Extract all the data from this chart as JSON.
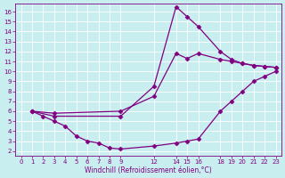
{
  "title": "",
  "xlabel": "Windchill (Refroidissement éolien,°C)",
  "ylabel": "",
  "bg_color": "#c8eef0",
  "grid_color": "#b8dfe2",
  "line_color": "#800080",
  "xlim": [
    -0.5,
    23.5
  ],
  "ylim": [
    1.5,
    16.8
  ],
  "xticks": [
    0,
    1,
    2,
    3,
    4,
    5,
    6,
    7,
    8,
    9,
    12,
    14,
    15,
    16,
    18,
    19,
    20,
    21,
    22,
    23
  ],
  "yticks": [
    2,
    3,
    4,
    5,
    6,
    7,
    8,
    9,
    10,
    11,
    12,
    13,
    14,
    15,
    16
  ],
  "lines": [
    {
      "x": [
        1,
        2,
        3,
        4,
        5,
        6,
        7,
        8,
        9,
        12,
        14,
        15,
        16,
        18,
        19,
        20,
        21,
        22,
        23
      ],
      "y": [
        6,
        5.5,
        5,
        4.5,
        3.5,
        3.0,
        2.8,
        2.3,
        2.2,
        2.5,
        2.8,
        3.0,
        3.2,
        6.0,
        7.0,
        8.0,
        9.0,
        9.5,
        10.0
      ]
    },
    {
      "x": [
        1,
        3,
        9,
        12,
        14,
        15,
        16,
        18,
        19,
        20,
        21,
        22,
        23
      ],
      "y": [
        6,
        5.5,
        5.5,
        8.5,
        16.5,
        15.5,
        14.5,
        12.0,
        11.2,
        10.8,
        10.6,
        10.5,
        10.4
      ]
    },
    {
      "x": [
        1,
        3,
        9,
        12,
        14,
        15,
        16,
        18,
        19,
        20,
        21,
        22,
        23
      ],
      "y": [
        6.0,
        5.8,
        6.0,
        7.5,
        11.8,
        11.3,
        11.8,
        11.2,
        11.0,
        10.8,
        10.6,
        10.5,
        10.4
      ]
    }
  ],
  "marker": "D",
  "markersize": 2.5,
  "linewidth": 0.9
}
